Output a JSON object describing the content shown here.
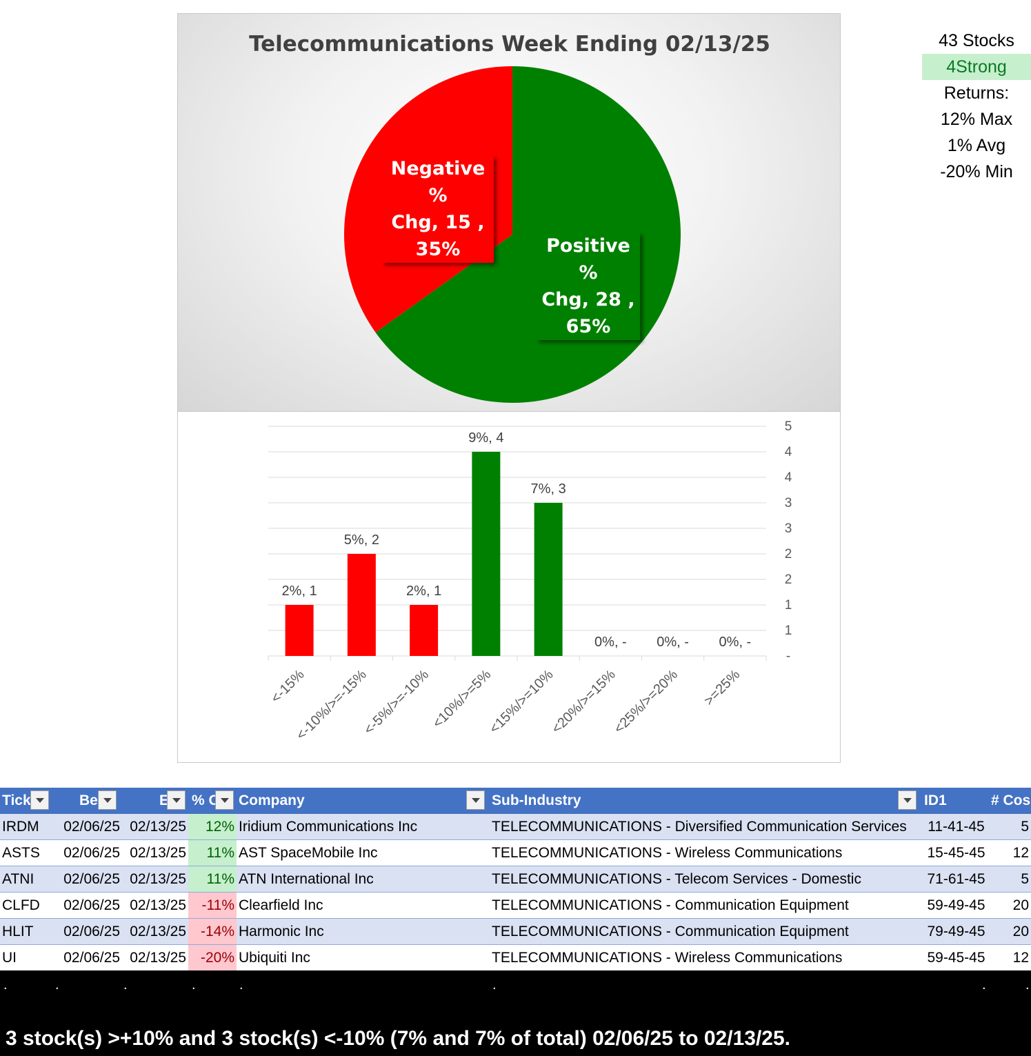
{
  "chart_data": [
    {
      "type": "pie",
      "title": "Telecommunications  Week Ending 02/13/25",
      "slices": [
        {
          "name": "Positive % Chg",
          "value": 28,
          "percent": "65%",
          "color": "#008000",
          "label_lines": [
            "Positive %",
            "Chg,  28 ,",
            "65%"
          ]
        },
        {
          "name": "Negative % Chg",
          "value": 15,
          "percent": "35%",
          "color": "#ff0000",
          "label_lines": [
            "Negative %",
            "Chg,  15 ,",
            "35%"
          ]
        }
      ]
    },
    {
      "type": "bar",
      "title": "",
      "categories": [
        "<-15%",
        "<-10%/>=-15%",
        "<-5%/>=-10%",
        "<10%/>=5%",
        "<15%/>=10%",
        "<20%/>=15%",
        "<25%/>=20%",
        ">=25%"
      ],
      "values": [
        1,
        2,
        1,
        4,
        3,
        0,
        0,
        0
      ],
      "data_labels": [
        "2%,  1",
        "5%,  2",
        "2%,  1",
        "9%,  4",
        "7%,  3",
        "0%,  -",
        "0%,  -",
        "0%,  -"
      ],
      "colors": [
        "#ff0000",
        "#ff0000",
        "#ff0000",
        "#008000",
        "#008000",
        "#008000",
        "#008000",
        "#008000"
      ],
      "ylim": [
        0,
        4.5
      ],
      "yticks": [
        0,
        0.5,
        1,
        1.5,
        2,
        2.5,
        3,
        3.5,
        4,
        4.5
      ],
      "ytick_labels": [
        "-",
        "1",
        "1",
        "2",
        "2",
        "3",
        "3",
        "4",
        "4",
        "5"
      ],
      "y_axis_side": "right",
      "grid": true
    }
  ],
  "stats": {
    "stocks": "43 Stocks",
    "strong": "4Strong",
    "returns": "Returns:",
    "max": "12% Max",
    "avg": "1% Avg",
    "min": "-20% Min"
  },
  "table": {
    "headers": [
      "Tick",
      "Be",
      "E",
      "% C",
      "Company",
      "Sub-Industry",
      "ID1",
      "# Cos"
    ],
    "rows": [
      {
        "ticker": "IRDM",
        "begin": "02/06/25",
        "end": "02/13/25",
        "pct": "12%",
        "sign": "pos",
        "company": "Iridium Communications Inc",
        "sub_industry": "TELECOMMUNICATIONS - Diversified Communication Services",
        "id1": "11-41-45",
        "cos": "5"
      },
      {
        "ticker": "ASTS",
        "begin": "02/06/25",
        "end": "02/13/25",
        "pct": "11%",
        "sign": "pos",
        "company": "AST SpaceMobile Inc",
        "sub_industry": "TELECOMMUNICATIONS - Wireless Communications",
        "id1": "15-45-45",
        "cos": "12"
      },
      {
        "ticker": "ATNI",
        "begin": "02/06/25",
        "end": "02/13/25",
        "pct": "11%",
        "sign": "pos",
        "company": "ATN International Inc",
        "sub_industry": "TELECOMMUNICATIONS - Telecom Services - Domestic",
        "id1": "71-61-45",
        "cos": "5"
      },
      {
        "ticker": "CLFD",
        "begin": "02/06/25",
        "end": "02/13/25",
        "pct": "-11%",
        "sign": "neg",
        "company": "Clearfield Inc",
        "sub_industry": "TELECOMMUNICATIONS - Communication Equipment",
        "id1": "59-49-45",
        "cos": "20"
      },
      {
        "ticker": "HLIT",
        "begin": "02/06/25",
        "end": "02/13/25",
        "pct": "-14%",
        "sign": "neg",
        "company": "Harmonic Inc",
        "sub_industry": "TELECOMMUNICATIONS - Communication Equipment",
        "id1": "79-49-45",
        "cos": "20"
      },
      {
        "ticker": "UI",
        "begin": "02/06/25",
        "end": "02/13/25",
        "pct": "-20%",
        "sign": "neg",
        "company": "Ubiquiti Inc",
        "sub_industry": "TELECOMMUNICATIONS - Wireless Communications",
        "id1": "59-45-45",
        "cos": "12"
      }
    ]
  },
  "footer": {
    "dots": [
      ".",
      ".",
      ".",
      ".",
      ".",
      ".",
      ".",
      "."
    ],
    "summary": "3 stock(s) >+10% and 3 stock(s) <-10% (7% and 7% of total) 02/06/25 to 02/13/25."
  }
}
